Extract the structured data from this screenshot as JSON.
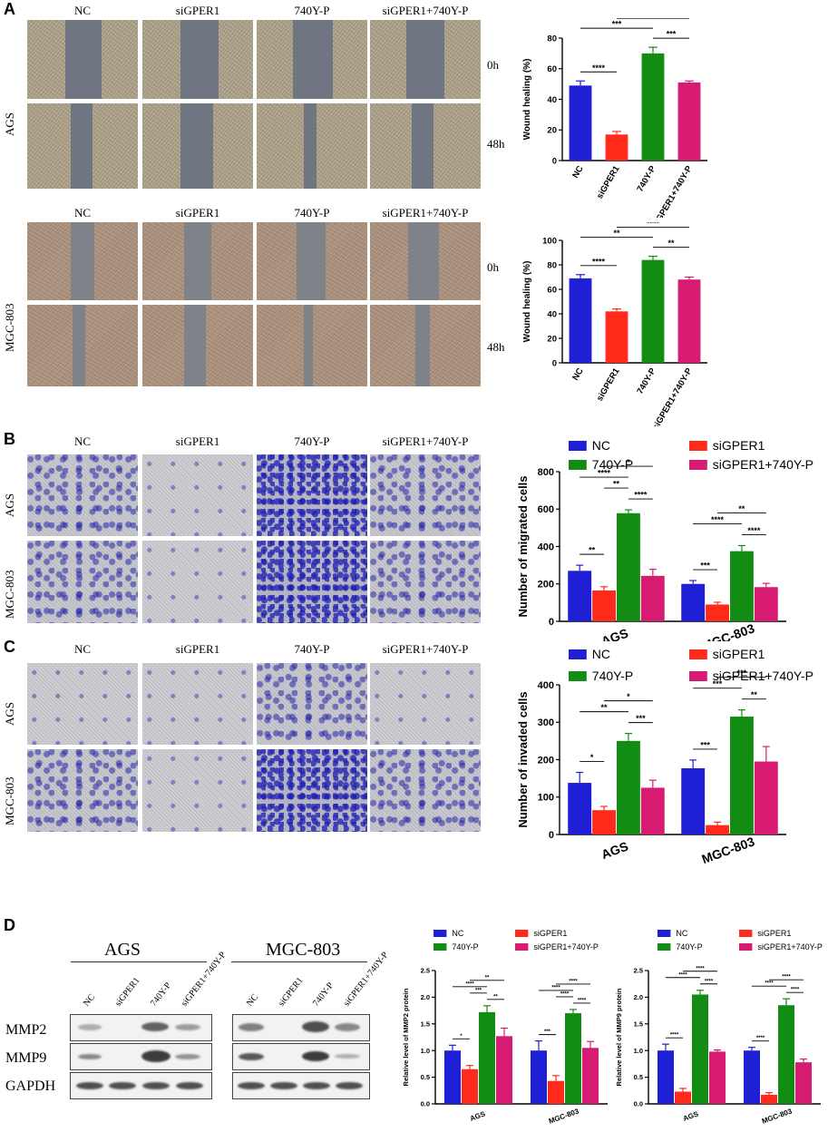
{
  "panels": {
    "A": {
      "label": "A",
      "columns": [
        "NC",
        "siGPER1",
        "740Y-P",
        "siGPER1+740Y-P"
      ],
      "rows": [
        "AGS",
        "MGC-803"
      ],
      "times": [
        "0h",
        "48h"
      ]
    },
    "B": {
      "label": "B",
      "columns": [
        "NC",
        "siGPER1",
        "740Y-P",
        "siGPER1+740Y-P"
      ],
      "rows": [
        "AGS",
        "MGC-803"
      ]
    },
    "C": {
      "label": "C",
      "columns": [
        "NC",
        "siGPER1",
        "740Y-P",
        "siGPER1+740Y-P"
      ],
      "rows": [
        "AGS",
        "MGC-803"
      ]
    },
    "D": {
      "label": "D",
      "groups": [
        "AGS",
        "MGC-803"
      ],
      "lanes": [
        "NC",
        "siGPER1",
        "740Y-P",
        "siGPER1+740Y-P"
      ],
      "proteins": [
        "MMP2",
        "MMP9",
        "GAPDH"
      ]
    }
  },
  "colors": {
    "NC": "#1f1fd6",
    "siGPER1": "#ff2a1a",
    "740Y-P": "#128c12",
    "siGPER1+740Y-P": "#d81b72"
  },
  "chart_data": [
    {
      "id": "wound-ags",
      "type": "bar",
      "categories": [
        "NC",
        "siGPER1",
        "740Y-P",
        "siGPER1+740Y-P"
      ],
      "values": [
        49,
        17,
        70,
        51
      ],
      "errors": [
        3,
        2,
        4,
        1
      ],
      "ylabel": "Wound healing (%)",
      "ylim": [
        0,
        80
      ],
      "yticks": [
        0,
        20,
        40,
        60,
        80
      ],
      "sig": [
        {
          "a": 0,
          "b": 1,
          "t": "****"
        },
        {
          "a": 0,
          "b": 2,
          "t": "***"
        },
        {
          "a": 2,
          "b": 3,
          "t": "***"
        },
        {
          "a": 1,
          "b": 3,
          "t": "****"
        }
      ]
    },
    {
      "id": "wound-mgc",
      "type": "bar",
      "categories": [
        "NC",
        "siGPER1",
        "740Y-P",
        "siGPER1+740Y-P"
      ],
      "values": [
        69,
        42,
        84,
        68
      ],
      "errors": [
        3,
        2,
        3,
        2
      ],
      "ylabel": "Wound healing (%)",
      "ylim": [
        0,
        100
      ],
      "yticks": [
        0,
        20,
        40,
        60,
        80,
        100
      ],
      "sig": [
        {
          "a": 0,
          "b": 1,
          "t": "****"
        },
        {
          "a": 0,
          "b": 2,
          "t": "**"
        },
        {
          "a": 2,
          "b": 3,
          "t": "**"
        },
        {
          "a": 1,
          "b": 3,
          "t": "****"
        }
      ]
    },
    {
      "id": "migration",
      "type": "bar",
      "groups": [
        "AGS",
        "MGC-803"
      ],
      "series": [
        {
          "name": "NC",
          "values": [
            270,
            200
          ],
          "errors": [
            30,
            18
          ]
        },
        {
          "name": "siGPER1",
          "values": [
            165,
            90
          ],
          "errors": [
            20,
            12
          ]
        },
        {
          "name": "740Y-P",
          "values": [
            578,
            375
          ],
          "errors": [
            18,
            30
          ]
        },
        {
          "name": "siGPER1+740Y-P",
          "values": [
            243,
            183
          ],
          "errors": [
            35,
            20
          ]
        }
      ],
      "ylabel": "Number of migrated cells",
      "ylim": [
        0,
        800
      ],
      "yticks": [
        0,
        200,
        400,
        600,
        800
      ],
      "sig": [
        [
          {
            "a": 0,
            "b": 1,
            "t": "**"
          },
          {
            "a": 0,
            "b": 2,
            "t": "****"
          },
          {
            "a": 2,
            "b": 3,
            "t": "****"
          },
          {
            "a": 1,
            "b": 2,
            "t": "**"
          },
          {
            "a": 1,
            "b": 3,
            "t": "*"
          }
        ],
        [
          {
            "a": 0,
            "b": 1,
            "t": "***"
          },
          {
            "a": 0,
            "b": 2,
            "t": "****"
          },
          {
            "a": 2,
            "b": 3,
            "t": "****"
          },
          {
            "a": 1,
            "b": 3,
            "t": "**"
          }
        ]
      ]
    },
    {
      "id": "invasion",
      "type": "bar",
      "groups": [
        "AGS",
        "MGC-803"
      ],
      "series": [
        {
          "name": "NC",
          "values": [
            138,
            177
          ],
          "errors": [
            28,
            22
          ]
        },
        {
          "name": "siGPER1",
          "values": [
            65,
            25
          ],
          "errors": [
            10,
            8
          ]
        },
        {
          "name": "740Y-P",
          "values": [
            250,
            315
          ],
          "errors": [
            20,
            18
          ]
        },
        {
          "name": "siGPER1+740Y-P",
          "values": [
            125,
            195
          ],
          "errors": [
            20,
            40
          ]
        }
      ],
      "ylabel": "Number of invaded cells",
      "ylim": [
        0,
        400
      ],
      "yticks": [
        0,
        100,
        200,
        300,
        400
      ],
      "sig": [
        [
          {
            "a": 0,
            "b": 1,
            "t": "*"
          },
          {
            "a": 0,
            "b": 2,
            "t": "**"
          },
          {
            "a": 2,
            "b": 3,
            "t": "***"
          },
          {
            "a": 1,
            "b": 3,
            "t": "*"
          }
        ],
        [
          {
            "a": 0,
            "b": 1,
            "t": "***"
          },
          {
            "a": 0,
            "b": 2,
            "t": "***"
          },
          {
            "a": 2,
            "b": 3,
            "t": "**"
          },
          {
            "a": 1,
            "b": 3,
            "t": "***"
          }
        ]
      ]
    },
    {
      "id": "mmp2",
      "type": "bar",
      "groups": [
        "AGS",
        "MGC-803"
      ],
      "series": [
        {
          "name": "NC",
          "values": [
            1.0,
            1.0
          ],
          "errors": [
            0.1,
            0.18
          ]
        },
        {
          "name": "siGPER1",
          "values": [
            0.65,
            0.43
          ],
          "errors": [
            0.07,
            0.1
          ]
        },
        {
          "name": "740Y-P",
          "values": [
            1.72,
            1.7
          ],
          "errors": [
            0.12,
            0.07
          ]
        },
        {
          "name": "siGPER1+740Y-P",
          "values": [
            1.27,
            1.05
          ],
          "errors": [
            0.15,
            0.12
          ]
        }
      ],
      "ylabel": "Relative level of MMP2 protein",
      "ylim": [
        0,
        2.5
      ],
      "yticks": [
        0.0,
        0.5,
        1.0,
        1.5,
        2.0,
        2.5
      ],
      "sig": [
        [
          {
            "a": 0,
            "b": 1,
            "t": "*"
          },
          {
            "a": 0,
            "b": 2,
            "t": "****"
          },
          {
            "a": 2,
            "b": 3,
            "t": "**"
          },
          {
            "a": 1,
            "b": 2,
            "t": "***"
          },
          {
            "a": 1,
            "b": 3,
            "t": "**"
          }
        ],
        [
          {
            "a": 0,
            "b": 1,
            "t": "***"
          },
          {
            "a": 0,
            "b": 2,
            "t": "****"
          },
          {
            "a": 2,
            "b": 3,
            "t": "****"
          },
          {
            "a": 1,
            "b": 2,
            "t": "****"
          },
          {
            "a": 1,
            "b": 3,
            "t": "****"
          }
        ]
      ]
    },
    {
      "id": "mmp9",
      "type": "bar",
      "groups": [
        "AGS",
        "MGC-803"
      ],
      "series": [
        {
          "name": "NC",
          "values": [
            1.0,
            1.0
          ],
          "errors": [
            0.12,
            0.06
          ]
        },
        {
          "name": "siGPER1",
          "values": [
            0.23,
            0.17
          ],
          "errors": [
            0.06,
            0.04
          ]
        },
        {
          "name": "740Y-P",
          "values": [
            2.05,
            1.85
          ],
          "errors": [
            0.08,
            0.12
          ]
        },
        {
          "name": "siGPER1+740Y-P",
          "values": [
            0.98,
            0.78
          ],
          "errors": [
            0.03,
            0.06
          ]
        }
      ],
      "ylabel": "Relative level of MMP9 protein",
      "ylim": [
        0,
        2.5
      ],
      "yticks": [
        0.0,
        0.5,
        1.0,
        1.5,
        2.0,
        2.5
      ],
      "sig": [
        [
          {
            "a": 0,
            "b": 1,
            "t": "****"
          },
          {
            "a": 0,
            "b": 2,
            "t": "****"
          },
          {
            "a": 2,
            "b": 3,
            "t": "****"
          },
          {
            "a": 1,
            "b": 3,
            "t": "****"
          }
        ],
        [
          {
            "a": 0,
            "b": 1,
            "t": "****"
          },
          {
            "a": 0,
            "b": 2,
            "t": "****"
          },
          {
            "a": 2,
            "b": 3,
            "t": "****"
          },
          {
            "a": 1,
            "b": 3,
            "t": "****"
          }
        ]
      ]
    }
  ]
}
